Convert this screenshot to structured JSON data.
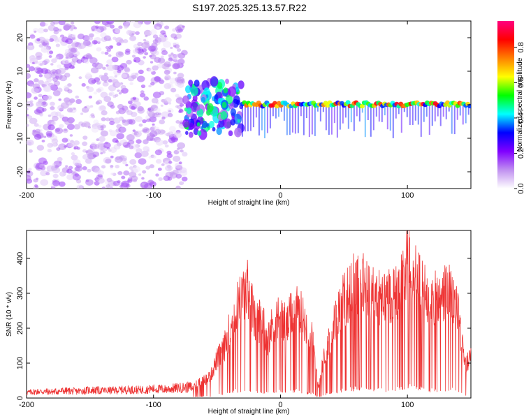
{
  "chart_data": [
    {
      "type": "heatmap",
      "title": "S197.2025.325.13.57.R22",
      "xlabel": "Height of straight line (km)",
      "ylabel": "Frequency (Hz)",
      "xlim": [
        -200,
        150
      ],
      "ylim": [
        -25,
        25
      ],
      "x_ticks": [
        -200,
        -100,
        0,
        100
      ],
      "x_tick_labels": [
        "-200",
        "-100",
        "0",
        "100"
      ],
      "y_ticks": [
        -20,
        -10,
        0,
        10,
        20
      ],
      "y_tick_labels": [
        "-20",
        "-10",
        "0",
        "10",
        "20"
      ],
      "colorbar": {
        "label": "Normalized spectral amplitude",
        "range": [
          0,
          0.95
        ],
        "ticks": [
          0,
          0.2,
          0.4,
          0.6,
          0.8
        ],
        "tick_labels": [
          "0.0",
          "0.2",
          "0.4",
          "0.6",
          "0.8"
        ],
        "colormap": [
          "#ffffff",
          "#c090f0",
          "#8000ff",
          "#0000ff",
          "#00ffff",
          "#00ff00",
          "#ffff00",
          "#ff8000",
          "#ff0000",
          "#ff0080"
        ]
      },
      "regions": [
        {
          "x_range": [
            -200,
            -75
          ],
          "description_level": "scattered noise",
          "amplitude": 0.1
        },
        {
          "x_range": [
            -75,
            -30
          ],
          "description_level": "transition blobs",
          "amplitude": 0.3
        },
        {
          "x_range": [
            -30,
            150
          ],
          "description_level": "tone near 0 Hz",
          "amplitude": 0.8
        }
      ]
    },
    {
      "type": "line",
      "xlabel": "Height of straight line (km)",
      "ylabel": "SNR (10 * v/v)",
      "xlim": [
        -200,
        150
      ],
      "ylim": [
        0,
        480
      ],
      "x_ticks": [
        -200,
        -100,
        0,
        100
      ],
      "x_tick_labels": [
        "-200",
        "-100",
        "0",
        "100"
      ],
      "y_ticks": [
        0,
        100,
        200,
        300,
        400
      ],
      "y_tick_labels": [
        "0",
        "100",
        "200",
        "300",
        "400"
      ],
      "series": [
        {
          "name": "SNR",
          "color": "#ee3333",
          "x": [
            -200,
            -190,
            -180,
            -170,
            -160,
            -150,
            -140,
            -130,
            -120,
            -110,
            -100,
            -90,
            -80,
            -70,
            -65,
            -60,
            -55,
            -50,
            -45,
            -40,
            -35,
            -30,
            -25,
            -20,
            -15,
            -10,
            -5,
            0,
            5,
            10,
            15,
            20,
            25,
            30,
            35,
            40,
            45,
            50,
            55,
            60,
            65,
            70,
            75,
            80,
            85,
            90,
            95,
            100,
            105,
            110,
            115,
            120,
            125,
            130,
            135,
            140,
            145,
            150
          ],
          "values": [
            15,
            18,
            17,
            20,
            18,
            22,
            20,
            21,
            23,
            22,
            25,
            24,
            28,
            30,
            55,
            60,
            75,
            130,
            160,
            230,
            300,
            340,
            370,
            250,
            270,
            200,
            260,
            280,
            240,
            300,
            290,
            250,
            200,
            40,
            150,
            220,
            280,
            330,
            360,
            400,
            380,
            360,
            340,
            330,
            350,
            360,
            390,
            470,
            420,
            380,
            350,
            340,
            320,
            360,
            340,
            300,
            110,
            130
          ]
        }
      ]
    }
  ]
}
